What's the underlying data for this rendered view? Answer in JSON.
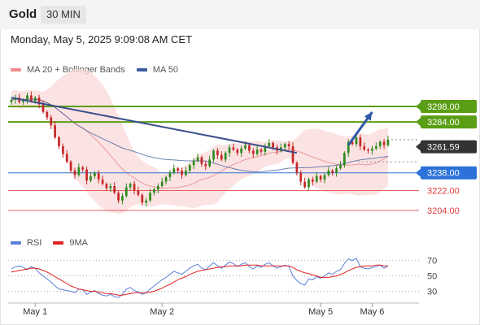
{
  "header": {
    "symbol": "Gold",
    "timeframe": "30 MIN"
  },
  "datetime": "Monday, May 5, 2025 9:09:08 AM CET",
  "legend": {
    "bollinger": {
      "label": "MA 20 + Bollinger Bands",
      "color": "#f08a8a"
    },
    "ma50": {
      "label": "MA 50",
      "color": "#3a5b9c"
    },
    "rsi": {
      "label": "RSI",
      "color": "#5b7fd9"
    },
    "rsi_ma": {
      "label": "9MA",
      "color": "#e02020"
    }
  },
  "colors": {
    "resistance": "#5a9e15",
    "support": "#2d72d9",
    "minor_support": "#e03b3b",
    "last_price": "#333333",
    "candle_up": "#2f8a1e",
    "candle_down": "#c62828",
    "trendline": "#3a4f8c",
    "arrow": "#2f5aa6"
  },
  "chart_data": [
    {
      "type": "candlestick",
      "x_tick_labels": [
        "May 1",
        "May 2",
        "May 5",
        "May 6"
      ],
      "ylim": [
        3190,
        3312
      ],
      "last_price": "3261.59",
      "levels": [
        {
          "label": "3298.00",
          "value": 3298.0,
          "kind": "resistance"
        },
        {
          "label": "3284.00",
          "value": 3284.0,
          "kind": "resistance"
        },
        {
          "label": "3238.00",
          "value": 3238.0,
          "kind": "support"
        },
        {
          "label": "3222.00",
          "value": 3222.0,
          "kind": "minor_support"
        },
        {
          "label": "3204.00",
          "value": 3204.0,
          "kind": "minor_support"
        }
      ],
      "closes": [
        3304,
        3306,
        3302,
        3304,
        3308,
        3303,
        3306,
        3300,
        3293,
        3288,
        3281,
        3270,
        3262,
        3255,
        3248,
        3240,
        3236,
        3243,
        3241,
        3231,
        3235,
        3238,
        3232,
        3228,
        3224,
        3226,
        3220,
        3213,
        3217,
        3225,
        3228,
        3222,
        3218,
        3211,
        3213,
        3220,
        3223,
        3226,
        3230,
        3234,
        3238,
        3242,
        3240,
        3236,
        3240,
        3245,
        3249,
        3252,
        3246,
        3244,
        3250,
        3258,
        3254,
        3250,
        3256,
        3261,
        3259,
        3256,
        3260,
        3263,
        3258,
        3255,
        3259,
        3257,
        3262,
        3265,
        3261,
        3258,
        3261,
        3264,
        3262,
        3247,
        3238,
        3230,
        3225,
        3232,
        3230,
        3235,
        3232,
        3236,
        3240,
        3238,
        3242,
        3245,
        3256,
        3266,
        3264,
        3270,
        3262,
        3259,
        3258,
        3260,
        3262,
        3266,
        3263,
        3268
      ],
      "trendline": [
        [
          0,
          3306
        ],
        [
          72,
          3256
        ]
      ],
      "arrow": [
        [
          85,
          3263
        ],
        [
          91,
          3293
        ]
      ]
    },
    {
      "type": "line",
      "title": "RSI",
      "ylim": [
        20,
        78
      ],
      "y_ticks": [
        70,
        50,
        30
      ],
      "series": [
        {
          "name": "RSI",
          "values": [
            59,
            62,
            63,
            61,
            58,
            62,
            60,
            54,
            50,
            46,
            42,
            37,
            33,
            32,
            31,
            30,
            28,
            33,
            32,
            26,
            29,
            31,
            27,
            25,
            24,
            26,
            23,
            22,
            26,
            33,
            35,
            31,
            29,
            26,
            28,
            33,
            37,
            41,
            45,
            48,
            52,
            56,
            54,
            52,
            56,
            60,
            63,
            65,
            60,
            58,
            63,
            67,
            63,
            60,
            64,
            68,
            66,
            62,
            65,
            67,
            62,
            59,
            63,
            61,
            65,
            67,
            63,
            60,
            62,
            64,
            62,
            50,
            44,
            40,
            38,
            46,
            45,
            49,
            47,
            50,
            54,
            52,
            56,
            58,
            66,
            72,
            70,
            73,
            62,
            60,
            59,
            61,
            62,
            64,
            60,
            63
          ]
        },
        {
          "name": "9MA",
          "values": [
            55,
            56,
            57,
            58,
            59,
            60,
            60,
            59,
            57,
            55,
            52,
            49,
            46,
            43,
            40,
            37,
            35,
            33,
            32,
            31,
            30,
            30,
            29,
            28,
            27,
            27,
            26,
            25,
            25,
            26,
            27,
            28,
            28,
            28,
            28,
            29,
            30,
            32,
            34,
            37,
            39,
            42,
            45,
            47,
            49,
            52,
            54,
            56,
            57,
            58,
            59,
            60,
            61,
            62,
            62,
            63,
            63,
            63,
            63,
            64,
            64,
            64,
            64,
            63,
            63,
            63,
            63,
            63,
            63,
            63,
            63,
            61,
            58,
            56,
            54,
            53,
            51,
            50,
            48,
            48,
            48,
            49,
            50,
            52,
            54,
            57,
            59,
            61,
            62,
            63,
            63,
            63,
            64,
            64,
            63,
            63
          ]
        }
      ]
    }
  ]
}
